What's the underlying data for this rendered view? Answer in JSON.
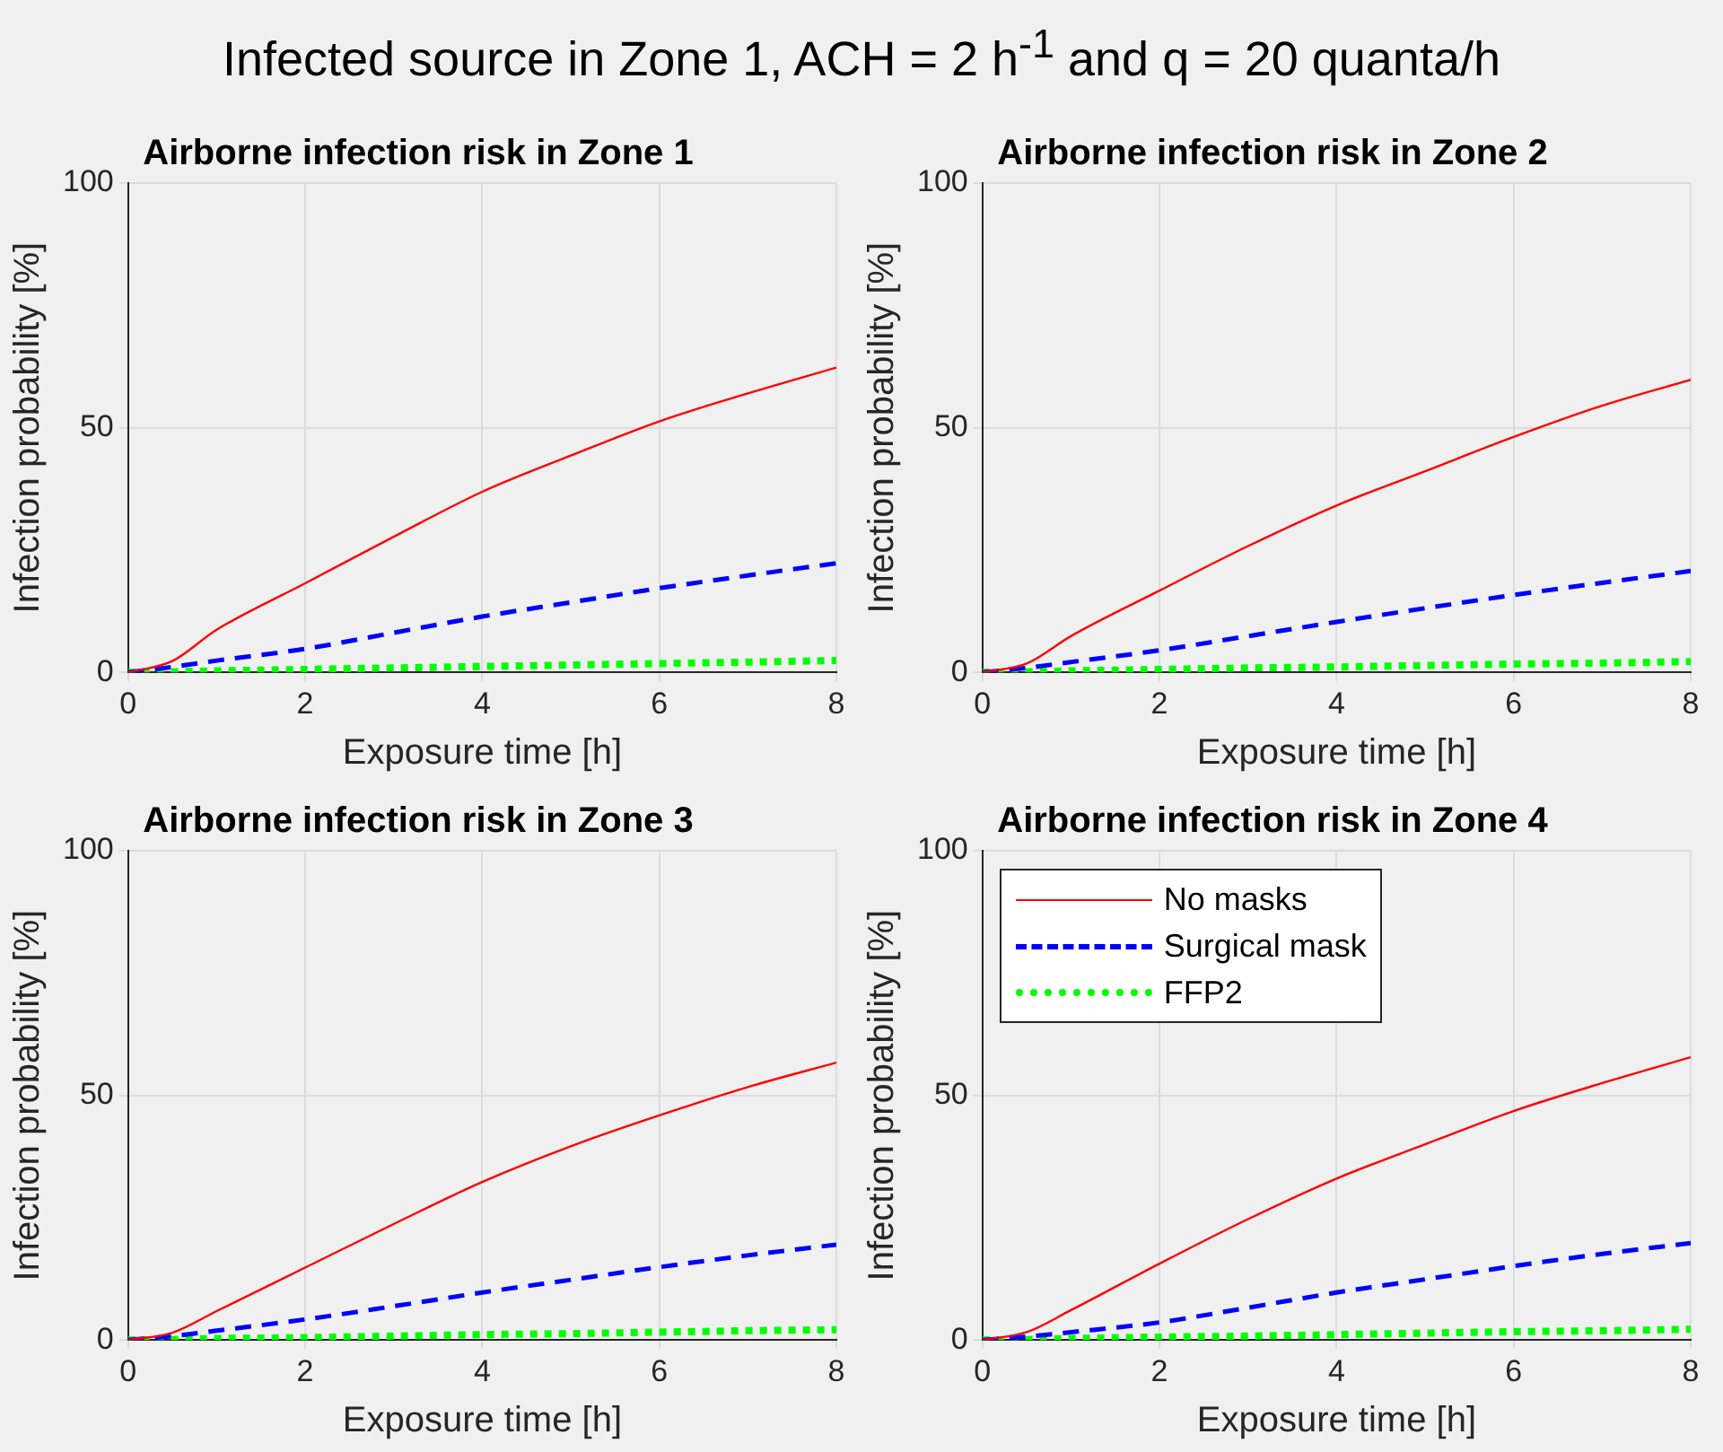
{
  "chart_data": [
    {
      "type": "line",
      "title": "Airborne infection risk in Zone 1",
      "annotations": [
        "Infected source in Zone 1, ACH = 2 h$^{-1}$ and q = 20 quanta/h"
      ],
      "xlabel": "Exposure time [h]",
      "ylabel": "Infection probability [%]",
      "x": [
        0,
        0.5,
        1,
        2,
        3,
        4,
        5,
        6,
        7,
        8
      ],
      "xlim": [
        0,
        8
      ],
      "ylim": [
        0,
        100
      ],
      "xticks": [
        0,
        2,
        4,
        6,
        8
      ],
      "yticks": [
        0,
        50,
        100
      ],
      "grid": true,
      "marker": "none",
      "legend": false,
      "series": [
        {
          "color": "#ff0000",
          "line_style": "solid",
          "values": [
            0,
            2.3,
            8.7,
            18.2,
            27.7,
            36.9,
            44.3,
            51.3,
            57,
            62.3
          ]
        },
        {
          "color": "#0000ff",
          "line_style": "dashed",
          "values": [
            0,
            1.1,
            2.4,
            4.8,
            8.1,
            11.4,
            14.3,
            17.2,
            19.8,
            22.3
          ]
        },
        {
          "color": "#00ff00",
          "line_style": "dotted",
          "values": [
            0,
            0.1,
            0.3,
            0.6,
            0.9,
            1.2,
            1.5,
            1.8,
            2.1,
            2.4
          ]
        }
      ]
    },
    {
      "type": "line",
      "title": "Airborne infection risk in Zone 2",
      "xlabel": "Exposure time [h]",
      "ylabel": "Infection probability [%]",
      "x": [
        0,
        0.5,
        1,
        2,
        3,
        4,
        5,
        6,
        7,
        8
      ],
      "xlim": [
        0,
        8
      ],
      "ylim": [
        0,
        100
      ],
      "xticks": [
        0,
        2,
        4,
        6,
        8
      ],
      "yticks": [
        0,
        50,
        100
      ],
      "grid": true,
      "marker": "none",
      "legend": false,
      "series": [
        {
          "color": "#ff0000",
          "line_style": "solid",
          "values": [
            0,
            1.8,
            7.4,
            16.7,
            25.8,
            34.1,
            41.1,
            48.1,
            54.5,
            59.8
          ]
        },
        {
          "color": "#0000ff",
          "line_style": "dashed",
          "values": [
            0,
            0.9,
            2.1,
            4.5,
            7.4,
            10.3,
            13.1,
            15.8,
            18.3,
            20.7
          ]
        },
        {
          "color": "#00ff00",
          "line_style": "dotted",
          "values": [
            0,
            0.1,
            0.3,
            0.6,
            0.9,
            1.1,
            1.4,
            1.7,
            1.9,
            2.2
          ]
        }
      ]
    },
    {
      "type": "line",
      "title": "Airborne infection risk in Zone 3",
      "xlabel": "Exposure time [h]",
      "ylabel": "Infection probability [%]",
      "x": [
        0,
        0.5,
        1,
        2,
        3,
        4,
        5,
        6,
        7,
        8
      ],
      "xlim": [
        0,
        8
      ],
      "ylim": [
        0,
        100
      ],
      "xticks": [
        0,
        2,
        4,
        6,
        8
      ],
      "yticks": [
        0,
        50,
        100
      ],
      "grid": true,
      "marker": "none",
      "legend": false,
      "series": [
        {
          "color": "#ff0000",
          "line_style": "solid",
          "values": [
            0,
            1.5,
            5.9,
            14.8,
            23.7,
            32.3,
            39.6,
            45.9,
            51.7,
            56.7
          ]
        },
        {
          "color": "#0000ff",
          "line_style": "dashed",
          "values": [
            0,
            0.8,
            1.9,
            4.2,
            6.9,
            9.7,
            12.3,
            14.9,
            17.3,
            19.5
          ]
        },
        {
          "color": "#00ff00",
          "line_style": "dotted",
          "values": [
            0,
            0.1,
            0.3,
            0.5,
            0.8,
            1.1,
            1.3,
            1.6,
            1.9,
            2.1
          ]
        }
      ]
    },
    {
      "type": "line",
      "title": "Airborne infection risk in Zone 4",
      "xlabel": "Exposure time [h]",
      "ylabel": "Infection probability [%]",
      "x": [
        0,
        0.5,
        1,
        2,
        3,
        4,
        5,
        6,
        7,
        8
      ],
      "xlim": [
        0,
        8
      ],
      "ylim": [
        0,
        100
      ],
      "xticks": [
        0,
        2,
        4,
        6,
        8
      ],
      "yticks": [
        0,
        50,
        100
      ],
      "grid": true,
      "marker": "none",
      "legend": "top left",
      "series": [
        {
          "name": "No masks",
          "color": "#ff0000",
          "line_style": "solid",
          "values": [
            0,
            1.6,
            6.1,
            15.6,
            24.7,
            33,
            40,
            46.8,
            52.5,
            57.8
          ]
        },
        {
          "name": "Surgical mask",
          "color": "#0000ff",
          "line_style": "dashed",
          "values": [
            0,
            0.7,
            1.6,
            3.6,
            6.6,
            9.7,
            12.4,
            15.1,
            17.6,
            19.8
          ]
        },
        {
          "name": "FFP2",
          "color": "#00ff00",
          "line_style": "dotted",
          "values": [
            0,
            0.1,
            0.3,
            0.6,
            0.8,
            1.1,
            1.4,
            1.7,
            1.9,
            2.2
          ]
        }
      ]
    }
  ]
}
